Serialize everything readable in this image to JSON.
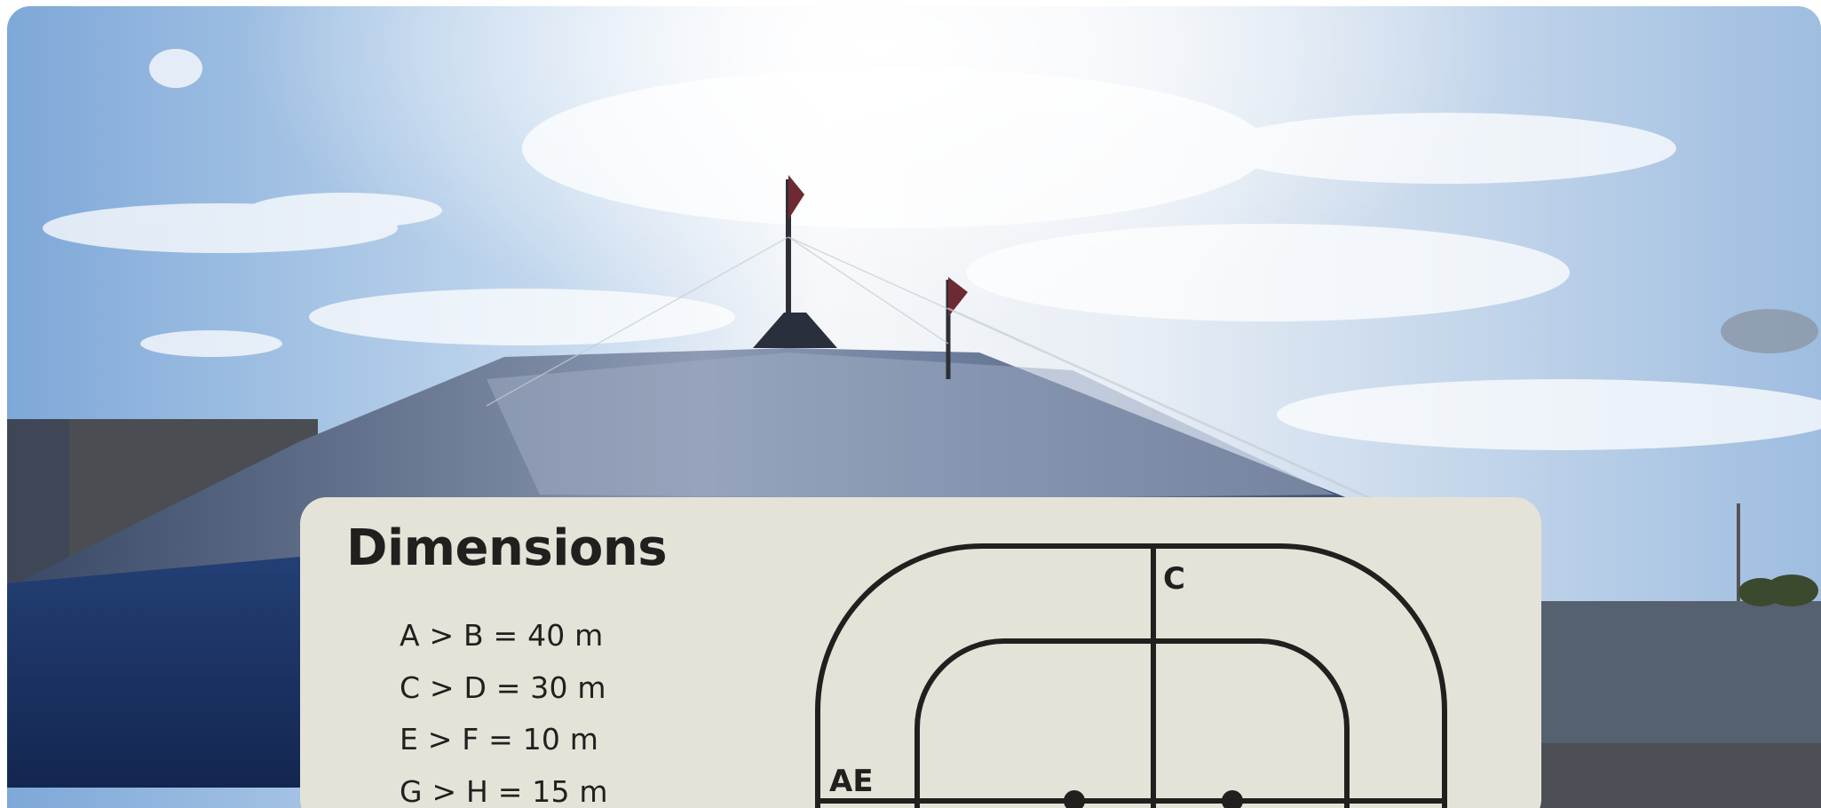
{
  "card": {
    "title": "Dimensions",
    "dimensions": [
      "A > B = 40 m",
      "C > D = 30 m",
      "E > F = 10 m",
      "G > H = 15 m"
    ]
  },
  "diagram": {
    "labels": {
      "c": "C",
      "ae": "AE"
    }
  },
  "colors": {
    "card_background": "#e5e3d8",
    "ink": "#221f1f",
    "tent_blue": "#1d3869",
    "sky_blue": "#86aedb"
  }
}
